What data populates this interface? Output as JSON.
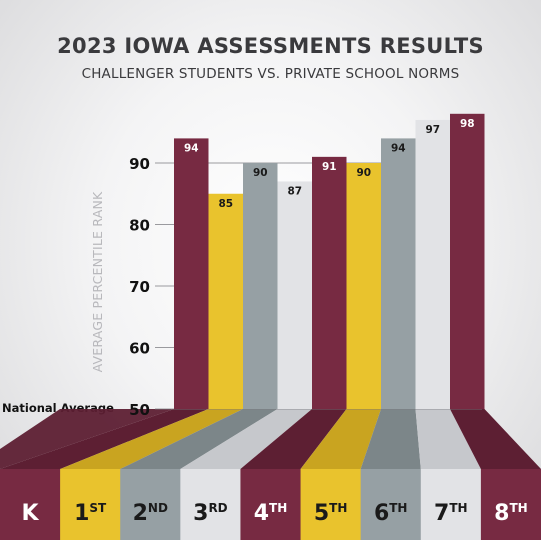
{
  "title": "2023 IOWA ASSESSMENTS RESULTS",
  "subtitle": "CHALLENGER STUDENTS VS. PRIVATE SCHOOL NORMS",
  "national_average_label": "National Average",
  "colors": {
    "maroon": "#772a42",
    "gold": "#e9c32d",
    "gray": "#96a0a4",
    "light": "#e2e3e6"
  },
  "chart_data": {
    "type": "bar",
    "title": "2023 IOWA ASSESSMENTS RESULTS",
    "subtitle": "CHALLENGER STUDENTS VS. PRIVATE SCHOOL NORMS",
    "xlabel": "",
    "ylabel": "AVERAGE PERCENTILE RANK",
    "ylim": [
      50,
      100
    ],
    "yticks": [
      50,
      60,
      70,
      80,
      90
    ],
    "grid": true,
    "series": [
      {
        "values": [
          94,
          85,
          90,
          87,
          91,
          90,
          94,
          97,
          98
        ]
      }
    ],
    "value_labels": [
      "94",
      "85",
      "90",
      "87",
      "91",
      "90",
      "94",
      "97",
      "98"
    ],
    "grades": [
      {
        "main": "K",
        "sup": "",
        "color": "maroon"
      },
      {
        "main": "1",
        "sup": "ST",
        "color": "gold"
      },
      {
        "main": "2",
        "sup": "ND",
        "color": "gray"
      },
      {
        "main": "3",
        "sup": "RD",
        "color": "light"
      },
      {
        "main": "4",
        "sup": "TH",
        "color": "maroon"
      },
      {
        "main": "5",
        "sup": "TH",
        "color": "gold"
      },
      {
        "main": "6",
        "sup": "TH",
        "color": "gray"
      },
      {
        "main": "7",
        "sup": "TH",
        "color": "light"
      },
      {
        "main": "8",
        "sup": "TH",
        "color": "maroon"
      }
    ]
  }
}
